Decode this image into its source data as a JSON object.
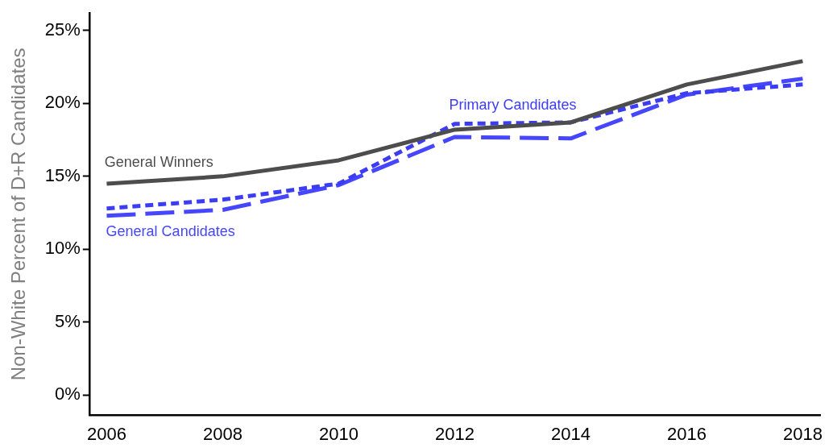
{
  "chart_data": {
    "type": "line",
    "ylabel": "Non-White Percent of D+R Candidates",
    "x": [
      2006,
      2008,
      2010,
      2012,
      2014,
      2016,
      2018
    ],
    "series": [
      {
        "name": "General Winners",
        "color": "#4d4d4d",
        "line_style": "solid",
        "values": [
          14.5,
          15.0,
          16.1,
          18.2,
          18.7,
          21.3,
          22.9
        ]
      },
      {
        "name": "Primary Candidates",
        "color": "#3c3cf5",
        "line_style": "dotted",
        "values": [
          12.8,
          13.4,
          14.5,
          18.6,
          18.7,
          20.7,
          21.3
        ]
      },
      {
        "name": "General Candidates",
        "color": "#4646ff",
        "line_style": "dashed",
        "values": [
          12.3,
          12.7,
          14.4,
          17.7,
          17.6,
          20.6,
          21.7
        ]
      }
    ],
    "xlim": [
      2005.7,
      2018.3
    ],
    "xticks": [
      2006,
      2008,
      2010,
      2012,
      2014,
      2016,
      2018
    ],
    "ylim": [
      -1.4,
      26.2
    ],
    "yticks": [
      {
        "value": 0,
        "label": "0%"
      },
      {
        "value": 5,
        "label": "5%"
      },
      {
        "value": 10,
        "label": "10%"
      },
      {
        "value": 15,
        "label": "15%"
      },
      {
        "value": 20,
        "label": "20%"
      },
      {
        "value": 25,
        "label": "25%"
      }
    ],
    "grid": false,
    "legend": false,
    "marker": "none"
  }
}
